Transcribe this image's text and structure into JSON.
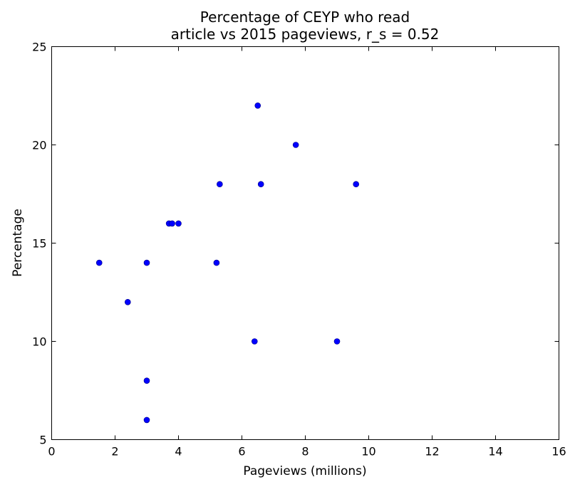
{
  "chart_data": {
    "type": "scatter",
    "title_line1": "Percentage of CEYP who read",
    "title_line2": "article vs 2015 pageviews, r_s = 0.52",
    "xlabel": "Pageviews (millions)",
    "ylabel": "Percentage",
    "xlim": [
      0,
      16
    ],
    "ylim": [
      5,
      25
    ],
    "xticks": [
      0,
      2,
      4,
      6,
      8,
      10,
      12,
      14,
      16
    ],
    "yticks": [
      5,
      10,
      15,
      20,
      25
    ],
    "grid": false,
    "point_color": "#0000ff",
    "points": [
      {
        "x": 1.5,
        "y": 14
      },
      {
        "x": 2.4,
        "y": 12
      },
      {
        "x": 3.0,
        "y": 14
      },
      {
        "x": 3.0,
        "y": 8
      },
      {
        "x": 3.0,
        "y": 6
      },
      {
        "x": 3.7,
        "y": 16
      },
      {
        "x": 3.8,
        "y": 16
      },
      {
        "x": 4.0,
        "y": 16
      },
      {
        "x": 5.2,
        "y": 14
      },
      {
        "x": 5.3,
        "y": 18
      },
      {
        "x": 6.4,
        "y": 10
      },
      {
        "x": 6.5,
        "y": 22
      },
      {
        "x": 6.6,
        "y": 18
      },
      {
        "x": 7.7,
        "y": 20
      },
      {
        "x": 9.0,
        "y": 10
      },
      {
        "x": 9.6,
        "y": 18
      }
    ]
  }
}
